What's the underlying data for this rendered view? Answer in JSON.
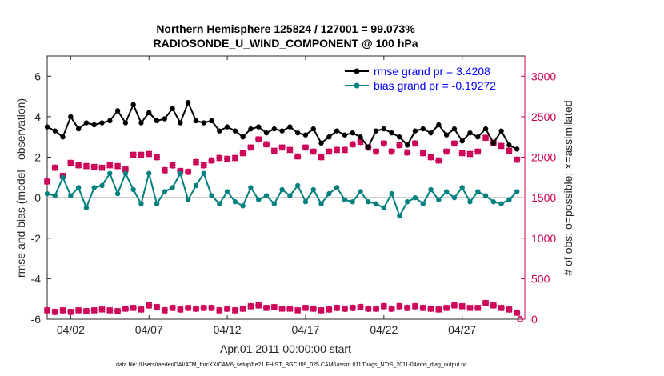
{
  "chart_data": {
    "type": "line",
    "title_line1": "Northern Hemisphere 125824 / 127001 = 99.073%",
    "title_line2": "RADIOSONDE_U_WIND_COMPONENT @ 100 hPa",
    "xlabel": "Apr.01,2011 00:00:00 start",
    "ylabel_left": "rmse and bias (model - observation)",
    "ylabel_right": "# of obs: o=possible; ×=assimilated",
    "xlim": [
      0.5,
      31.0
    ],
    "ylim_left": [
      -6,
      7
    ],
    "ylim_right": [
      0,
      3250
    ],
    "x_ticks": [
      {
        "value": 2,
        "label": "04/02"
      },
      {
        "value": 7,
        "label": "04/07"
      },
      {
        "value": 12,
        "label": "04/12"
      },
      {
        "value": 17,
        "label": "04/17"
      },
      {
        "value": 22,
        "label": "04/22"
      },
      {
        "value": 27,
        "label": "04/27"
      }
    ],
    "y_ticks_left": [
      -6,
      -4,
      -2,
      0,
      2,
      4,
      6
    ],
    "y_ticks_right": [
      0,
      500,
      1000,
      1500,
      2000,
      2500,
      3000
    ],
    "right_axis_color": "#cc0055",
    "legend_position": "top-right",
    "series": [
      {
        "name": "rmse grand pr = 3.4208",
        "axis": "left",
        "color": "#000000",
        "x": [
          0.5,
          1.0,
          1.5,
          2.0,
          2.5,
          3.0,
          3.5,
          4.0,
          4.5,
          5.0,
          5.5,
          6.0,
          6.5,
          7.0,
          7.5,
          8.0,
          8.5,
          9.0,
          9.5,
          10.0,
          10.5,
          11.0,
          11.5,
          12.0,
          12.5,
          13.0,
          13.5,
          14.0,
          14.5,
          15.0,
          15.5,
          16.0,
          16.5,
          17.0,
          17.5,
          18.0,
          18.5,
          19.0,
          19.5,
          20.0,
          20.5,
          21.0,
          21.5,
          22.0,
          22.5,
          23.0,
          23.5,
          24.0,
          24.5,
          25.0,
          25.5,
          26.0,
          26.5,
          27.0,
          27.5,
          28.0,
          28.5,
          29.0,
          29.5,
          30.0,
          30.5
        ],
        "values": [
          3.5,
          3.3,
          3.0,
          4.0,
          3.4,
          3.7,
          3.6,
          3.7,
          3.8,
          4.3,
          3.7,
          4.6,
          3.7,
          4.2,
          3.8,
          3.9,
          4.4,
          3.7,
          4.7,
          3.8,
          3.7,
          3.8,
          3.3,
          3.5,
          3.3,
          3.0,
          3.4,
          3.5,
          3.2,
          3.4,
          3.3,
          3.5,
          3.2,
          3.1,
          3.4,
          2.7,
          3.0,
          3.3,
          3.1,
          3.2,
          3.0,
          2.5,
          3.3,
          3.4,
          3.2,
          3.0,
          2.6,
          3.3,
          3.4,
          3.2,
          3.6,
          3.1,
          3.4,
          2.8,
          3.2,
          3.0,
          3.4,
          2.7,
          3.3,
          2.6,
          2.4
        ]
      },
      {
        "name": "bias grand pr = -0.19272",
        "axis": "left",
        "color": "#00807f",
        "x": [
          0.5,
          1.0,
          1.5,
          2.0,
          2.5,
          3.0,
          3.5,
          4.0,
          4.5,
          5.0,
          5.5,
          6.0,
          6.5,
          7.0,
          7.5,
          8.0,
          8.5,
          9.0,
          9.5,
          10.0,
          10.5,
          11.0,
          11.5,
          12.0,
          12.5,
          13.0,
          13.5,
          14.0,
          14.5,
          15.0,
          15.5,
          16.0,
          16.5,
          17.0,
          17.5,
          18.0,
          18.5,
          19.0,
          19.5,
          20.0,
          20.5,
          21.0,
          21.5,
          22.0,
          22.5,
          23.0,
          23.5,
          24.0,
          24.5,
          25.0,
          25.5,
          26.0,
          26.5,
          27.0,
          27.5,
          28.0,
          28.5,
          29.0,
          29.5,
          30.0,
          30.5
        ],
        "values": [
          0.2,
          0.1,
          1.0,
          0.1,
          0.5,
          -0.5,
          0.5,
          0.6,
          1.2,
          0.2,
          1.2,
          0.4,
          -0.3,
          1.2,
          -0.3,
          0.3,
          0.5,
          1.2,
          -0.1,
          0.6,
          1.2,
          0.1,
          -0.3,
          0.3,
          -0.2,
          -0.4,
          0.5,
          -0.1,
          0.1,
          -0.3,
          0.4,
          0.1,
          0.6,
          -0.2,
          0.4,
          -0.3,
          0.2,
          0.5,
          -0.1,
          -0.2,
          0.3,
          -0.2,
          -0.3,
          -0.5,
          0.2,
          -0.9,
          -0.2,
          0.0,
          -0.3,
          0.4,
          -0.1,
          0.3,
          0.0,
          0.5,
          -0.2,
          0.3,
          0.1,
          -0.2,
          -0.3,
          -0.1,
          0.3
        ]
      },
      {
        "name": "possible obs",
        "axis": "right",
        "color": "#cc0055",
        "marker": "o",
        "x": [
          0.5,
          1.0,
          1.5,
          2.0,
          2.5,
          3.0,
          3.5,
          4.0,
          4.5,
          5.0,
          5.5,
          6.0,
          6.5,
          7.0,
          7.5,
          8.0,
          8.5,
          9.0,
          9.5,
          10.0,
          10.5,
          11.0,
          11.5,
          12.0,
          12.5,
          13.0,
          13.5,
          14.0,
          14.5,
          15.0,
          15.5,
          16.0,
          16.5,
          17.0,
          17.5,
          18.0,
          18.5,
          19.0,
          19.5,
          20.0,
          20.5,
          21.0,
          21.5,
          22.0,
          22.5,
          23.0,
          23.5,
          24.0,
          24.5,
          25.0,
          25.5,
          26.0,
          26.5,
          27.0,
          27.5,
          28.0,
          28.5,
          29.0,
          29.5,
          30.0,
          30.5
        ],
        "values": [
          1700,
          1870,
          1770,
          1930,
          1900,
          1890,
          1880,
          1870,
          1900,
          1890,
          1850,
          2030,
          2030,
          2040,
          2000,
          1840,
          1900,
          1830,
          1820,
          1940,
          1900,
          1960,
          1990,
          1980,
          1990,
          2050,
          2120,
          2220,
          2160,
          2080,
          2120,
          2090,
          2010,
          2120,
          2070,
          2000,
          2070,
          2090,
          2090,
          2160,
          2190,
          2120,
          2070,
          2170,
          2070,
          2150,
          2060,
          2170,
          2050,
          2000,
          1960,
          2070,
          2170,
          2050,
          2040,
          2070,
          2240,
          2180,
          2140,
          2080,
          1970
        ],
        "note": "value at x=30.5 also has a low point near 0"
      },
      {
        "name": "assimilated obs",
        "axis": "right",
        "color": "#cc0055",
        "marker": "x",
        "x": [
          0.5,
          1.0,
          1.5,
          2.0,
          2.5,
          3.0,
          3.5,
          4.0,
          4.5,
          5.0,
          5.5,
          6.0,
          6.5,
          7.0,
          7.5,
          8.0,
          8.5,
          9.0,
          9.5,
          10.0,
          10.5,
          11.0,
          11.5,
          12.0,
          12.5,
          13.0,
          13.5,
          14.0,
          14.5,
          15.0,
          15.5,
          16.0,
          16.5,
          17.0,
          17.5,
          18.0,
          18.5,
          19.0,
          19.5,
          20.0,
          20.5,
          21.0,
          21.5,
          22.0,
          22.5,
          23.0,
          23.5,
          24.0,
          24.5,
          25.0,
          25.5,
          26.0,
          26.5,
          27.0,
          27.5,
          28.0,
          28.5,
          29.0,
          29.5,
          30.0,
          30.5
        ],
        "values": [
          110,
          90,
          110,
          90,
          110,
          100,
          110,
          120,
          110,
          100,
          130,
          140,
          120,
          170,
          150,
          110,
          140,
          120,
          140,
          130,
          140,
          140,
          110,
          130,
          110,
          130,
          160,
          170,
          140,
          150,
          130,
          130,
          110,
          140,
          130,
          110,
          120,
          140,
          130,
          140,
          150,
          130,
          130,
          160,
          130,
          160,
          140,
          160,
          140,
          130,
          120,
          140,
          170,
          160,
          140,
          140,
          200,
          170,
          140,
          120,
          80
        ]
      }
    ],
    "extra_points": [
      {
        "series": "assimilated obs",
        "x": 30.7,
        "value": 0
      }
    ]
  },
  "footer": {
    "datafile": "data file: /Users/raeder/DAI/ATM_forcXX/CAM6_setup/f.e21.FHIST_BGC.f09_025.CAM6assim.011/Diags_NTrS_2011-04/obs_diag_output.nc"
  }
}
